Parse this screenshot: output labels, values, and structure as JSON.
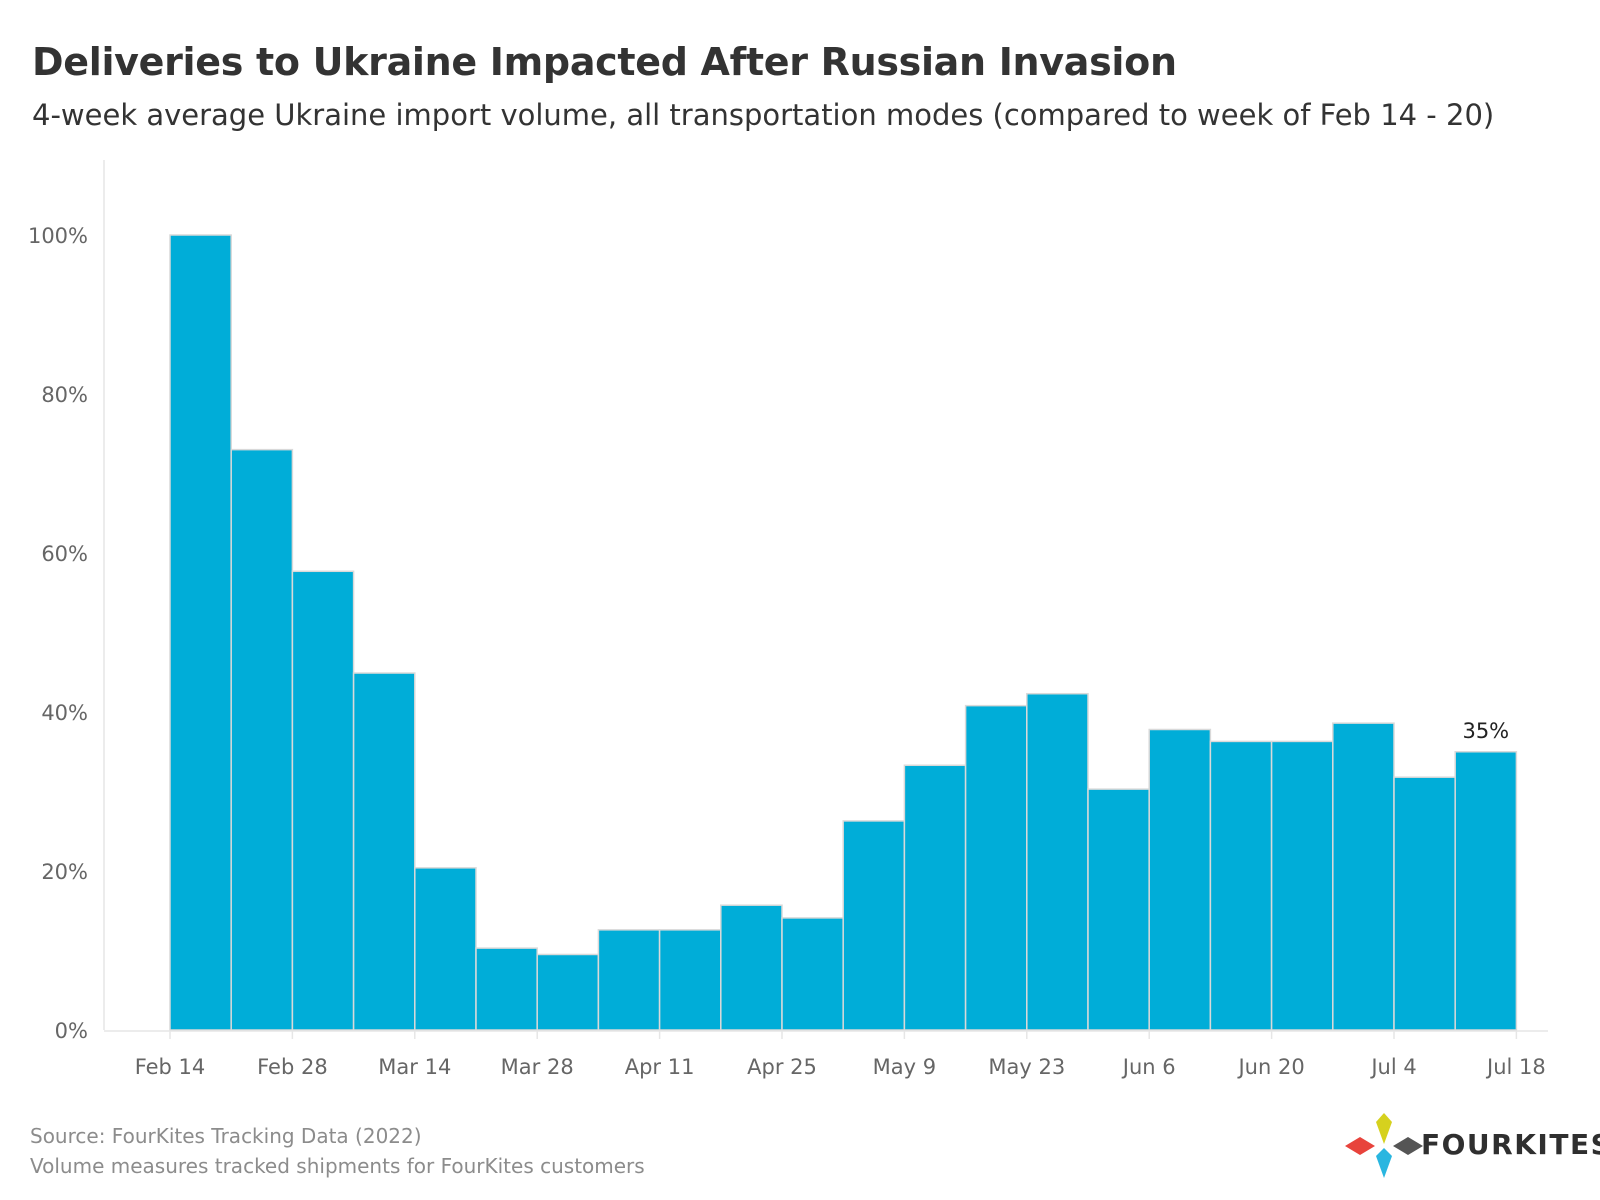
{
  "header": {
    "title": "Deliveries to Ukraine Impacted After Russian Invasion",
    "subtitle": "4-week average Ukraine import volume, all transportation modes (compared to week of Feb 14 - 20)"
  },
  "footer": {
    "source": "Source: FourKites Tracking Data (2022)",
    "note": "Volume measures tracked shipments for FourKites customers",
    "logo_text": "FOURKITES"
  },
  "colors": {
    "bar": "#00ADD8",
    "bar_border": "#D9D9D9",
    "axis": "#E6E6E6",
    "tick_text": "#666666",
    "title_text": "#333333",
    "logo_red": "#E8433C",
    "logo_yellow": "#D6D11E",
    "logo_gray": "#555555",
    "logo_blue": "#29B6E0"
  },
  "chart_data": {
    "type": "bar",
    "title": "Deliveries to Ukraine Impacted After Russian Invasion",
    "subtitle": "4-week average Ukraine import volume, all transportation modes (compared to week of Feb 14 - 20)",
    "xlabel": "",
    "ylabel": "",
    "x_unit": "week starting",
    "categories": [
      "Feb 14",
      "Feb 21",
      "Feb 28",
      "Mar 7",
      "Mar 14",
      "Mar 21",
      "Mar 28",
      "Apr 4",
      "Apr 11",
      "Apr 18",
      "Apr 25",
      "May 2",
      "May 9",
      "May 16",
      "May 23",
      "May 30",
      "Jun 6",
      "Jun 13",
      "Jun 20",
      "Jun 27",
      "Jul 4",
      "Jul 11"
    ],
    "x_tick_labels": [
      "Feb 14",
      "Feb 28",
      "Mar 14",
      "Mar 28",
      "Apr 11",
      "Apr 25",
      "May 9",
      "May 23",
      "Jun 6",
      "Jun 20",
      "Jul 4",
      "Jul 18"
    ],
    "values": [
      100,
      73,
      57.7,
      44.9,
      20.4,
      10.3,
      9.5,
      12.6,
      12.6,
      15.7,
      14.1,
      26.3,
      33.3,
      40.8,
      42.3,
      30.3,
      37.8,
      36.3,
      36.3,
      38.6,
      31.8,
      35
    ],
    "value_unit": "%",
    "data_labels": [
      {
        "category": "Jul 11",
        "text": "35%"
      }
    ],
    "y_ticks": [
      0,
      20,
      40,
      60,
      80,
      100
    ],
    "y_tick_format": "{v}%",
    "ylim": [
      0,
      108
    ],
    "grid": false,
    "legend": "none"
  }
}
